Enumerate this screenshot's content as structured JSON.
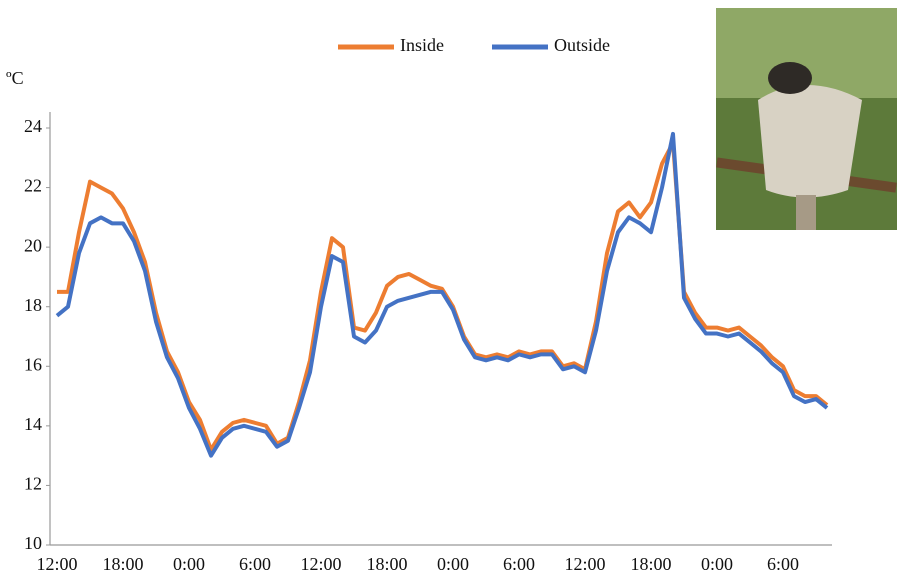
{
  "chart_data": {
    "type": "line",
    "y_label": "ºC",
    "categories": [
      "12:00",
      null,
      null,
      null,
      null,
      null,
      "18:00",
      null,
      null,
      null,
      null,
      null,
      "0:00",
      null,
      null,
      null,
      null,
      null,
      "6:00",
      null,
      null,
      null,
      null,
      null,
      "12:00",
      null,
      null,
      null,
      null,
      null,
      "18:00",
      null,
      null,
      null,
      null,
      null,
      "0:00",
      null,
      null,
      null,
      null,
      null,
      "6:00",
      null,
      null,
      null,
      null,
      null,
      "12:00",
      null,
      null,
      null,
      null,
      null,
      "18:00",
      null,
      null,
      null,
      null,
      null,
      "0:00",
      null,
      null,
      null,
      null,
      null,
      "6:00",
      null,
      null,
      null,
      null
    ],
    "series": [
      {
        "name": "Inside",
        "color": "#ed7d31",
        "values": [
          18.5,
          18.5,
          20.5,
          22.2,
          22.0,
          21.8,
          21.3,
          20.5,
          19.5,
          17.8,
          16.5,
          15.8,
          14.8,
          14.2,
          13.2,
          13.8,
          14.1,
          14.2,
          14.1,
          14.0,
          13.4,
          13.6,
          14.8,
          16.2,
          18.5,
          20.3,
          20.0,
          17.3,
          17.2,
          17.8,
          18.7,
          19.0,
          19.1,
          18.9,
          18.7,
          18.6,
          18.0,
          17.0,
          16.4,
          16.3,
          16.4,
          16.3,
          16.5,
          16.4,
          16.5,
          16.5,
          16.0,
          16.1,
          15.9,
          17.5,
          19.8,
          21.2,
          21.5,
          21.0,
          21.5,
          22.8,
          23.5,
          18.5,
          17.8,
          17.3,
          17.3,
          17.2,
          17.3,
          17.0,
          16.7,
          16.3,
          16.0,
          15.2,
          15.0,
          15.0,
          14.7
        ]
      },
      {
        "name": "Outside",
        "color": "#4472c4",
        "values": [
          17.7,
          18.0,
          19.8,
          20.8,
          21.0,
          20.8,
          20.8,
          20.2,
          19.2,
          17.5,
          16.3,
          15.6,
          14.6,
          13.9,
          13.0,
          13.6,
          13.9,
          14.0,
          13.9,
          13.8,
          13.3,
          13.5,
          14.6,
          15.8,
          18.0,
          19.7,
          19.5,
          17.0,
          16.8,
          17.2,
          18.0,
          18.2,
          18.3,
          18.4,
          18.5,
          18.5,
          17.9,
          16.9,
          16.3,
          16.2,
          16.3,
          16.2,
          16.4,
          16.3,
          16.4,
          16.4,
          15.9,
          16.0,
          15.8,
          17.2,
          19.2,
          20.5,
          21.0,
          20.8,
          20.5,
          22.0,
          23.8,
          18.3,
          17.6,
          17.1,
          17.1,
          17.0,
          17.1,
          16.8,
          16.5,
          16.1,
          15.8,
          15.0,
          14.8,
          14.9,
          14.6
        ]
      }
    ],
    "ylim": [
      10,
      24
    ],
    "yticks": [
      10,
      12,
      14,
      16,
      18,
      20,
      22,
      24
    ],
    "grid": false,
    "legend": "top"
  }
}
